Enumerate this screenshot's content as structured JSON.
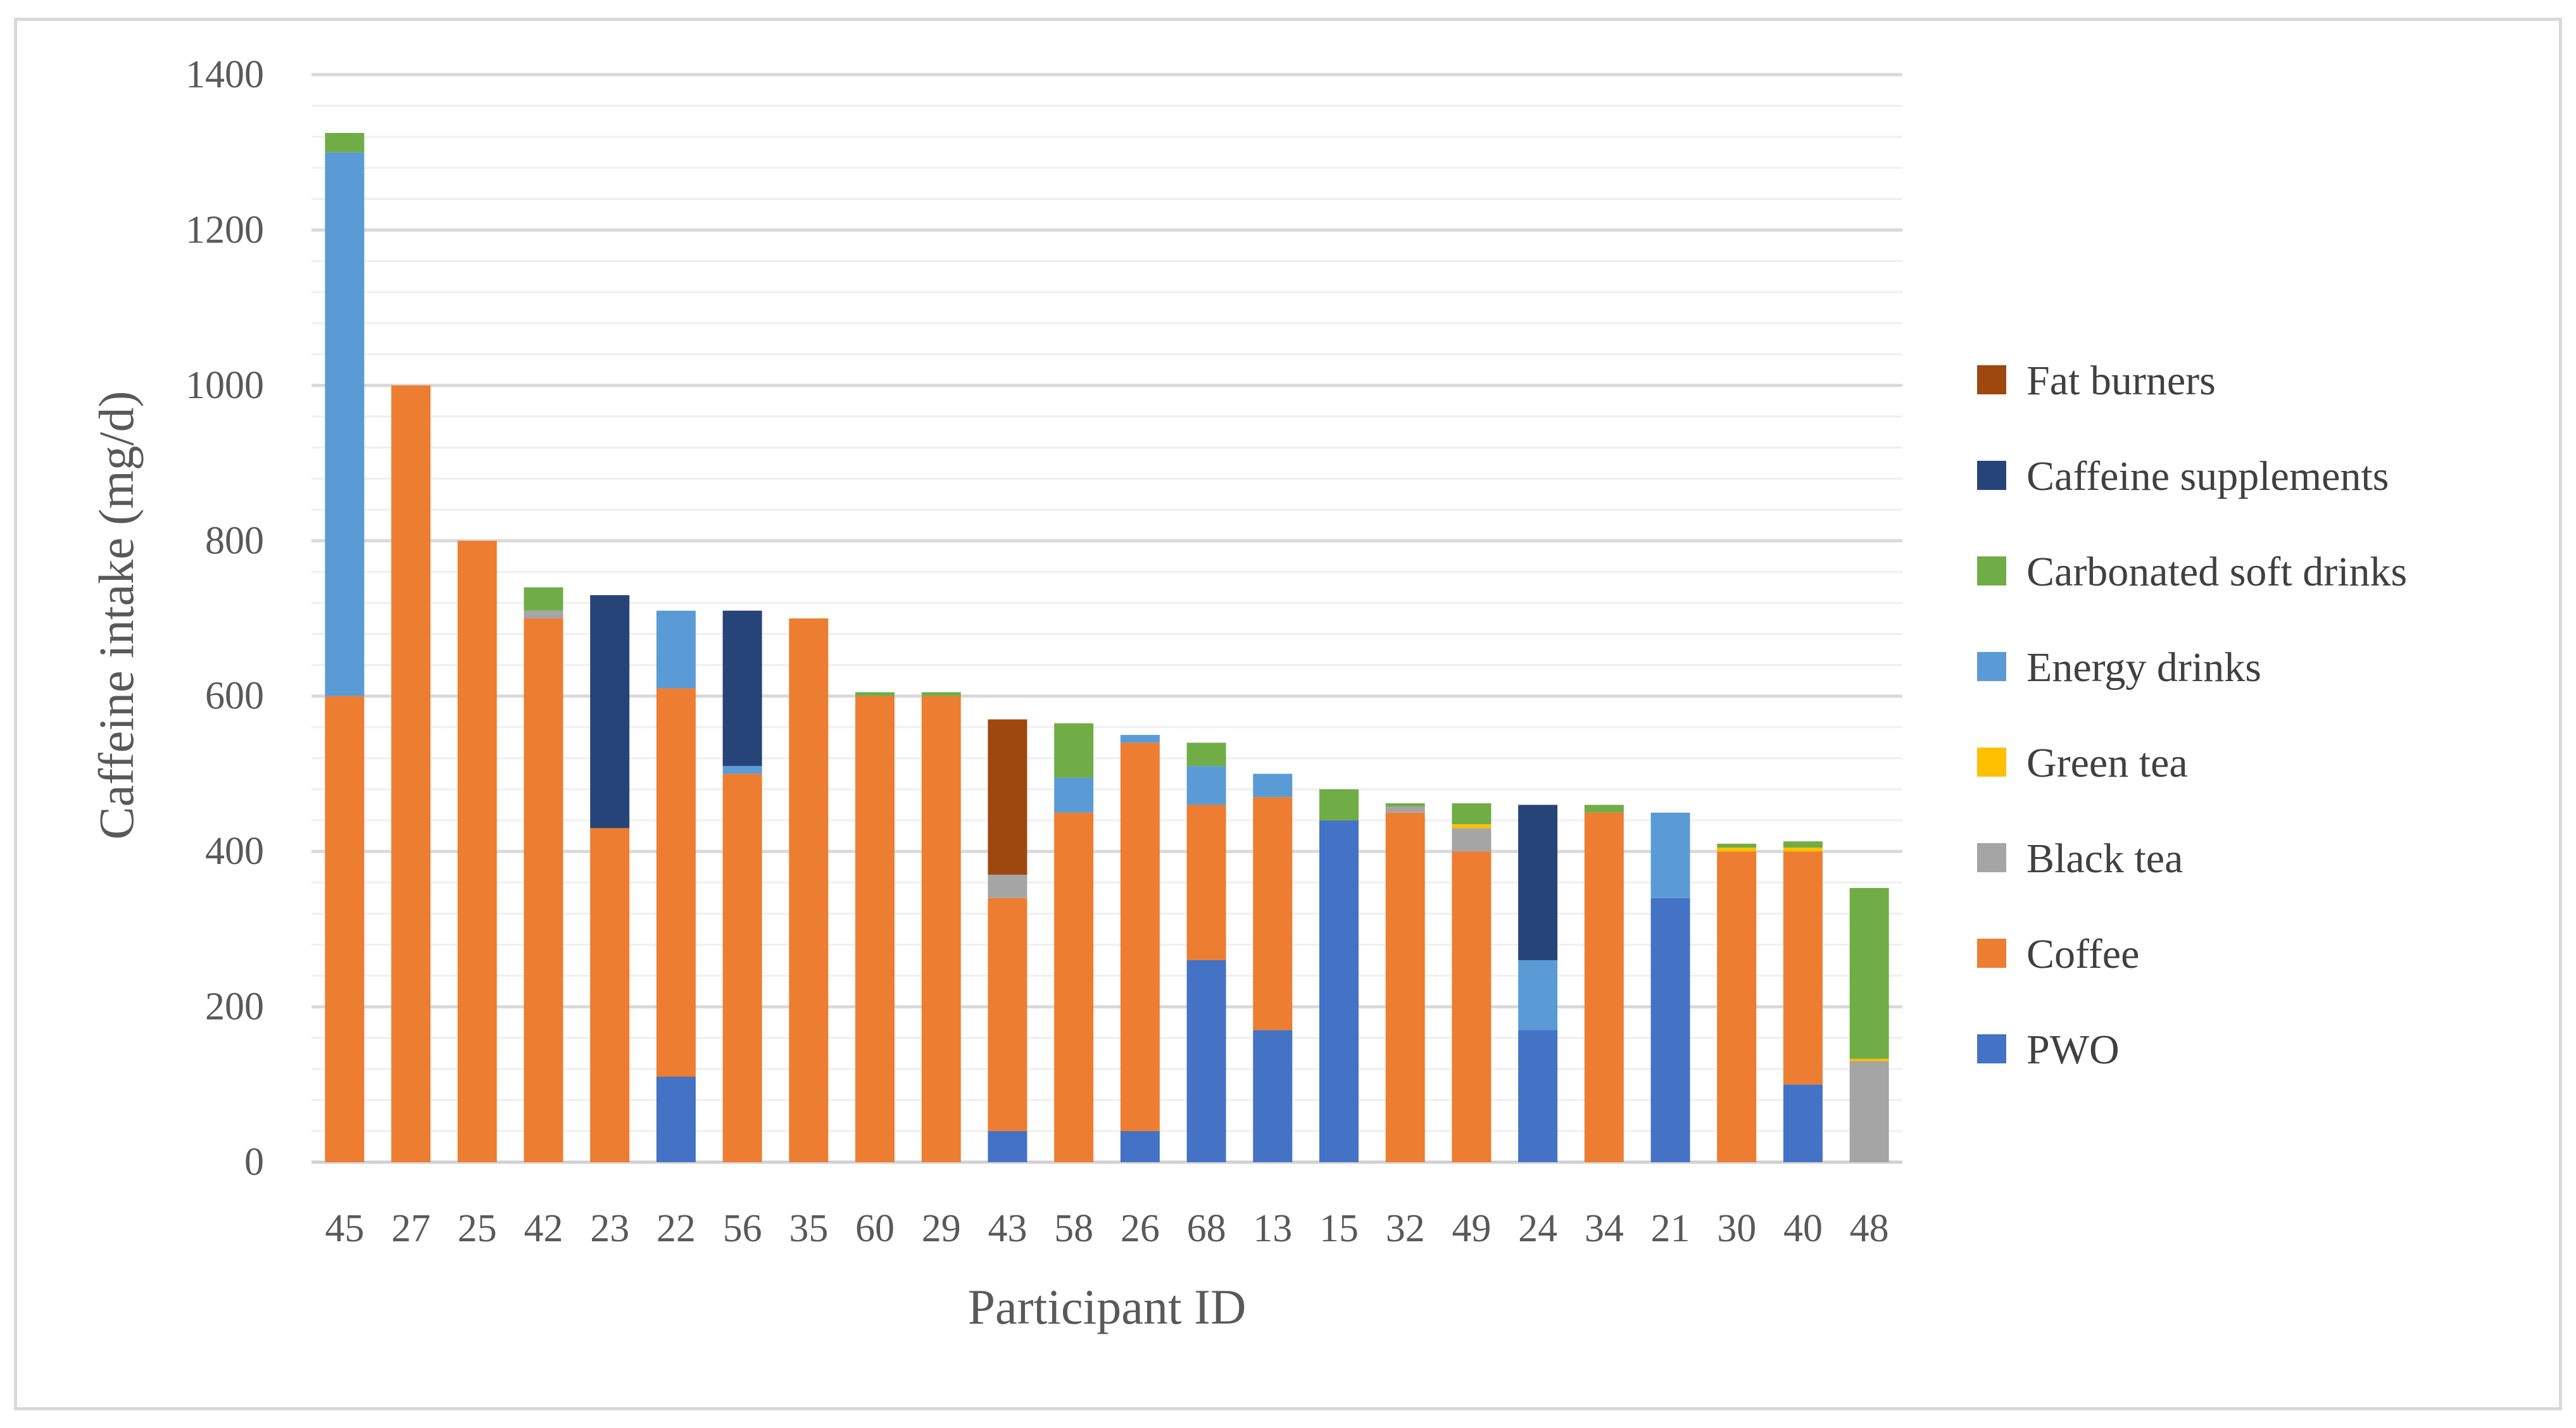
{
  "chart_data": {
    "type": "bar",
    "stacked": true,
    "title": "",
    "xlabel": "Participant ID",
    "ylabel": "Caffeine intake (mg/d)",
    "ylim": [
      0,
      1400
    ],
    "ytick_step": 200,
    "minor_grid_step": 40,
    "grid": true,
    "legend_position": "right",
    "categories": [
      "45",
      "27",
      "25",
      "42",
      "23",
      "22",
      "56",
      "35",
      "60",
      "29",
      "43",
      "58",
      "26",
      "68",
      "13",
      "15",
      "32",
      "49",
      "24",
      "34",
      "21",
      "30",
      "40",
      "48"
    ],
    "series": [
      {
        "name": "PWO",
        "color": "#4472c4",
        "values": [
          0,
          0,
          0,
          0,
          0,
          110,
          0,
          0,
          0,
          0,
          40,
          0,
          40,
          260,
          170,
          440,
          0,
          0,
          170,
          0,
          340,
          0,
          100,
          0
        ]
      },
      {
        "name": "Coffee",
        "color": "#ed7d31",
        "values": [
          600,
          1000,
          800,
          700,
          430,
          500,
          500,
          700,
          600,
          600,
          300,
          450,
          500,
          200,
          300,
          0,
          450,
          400,
          0,
          450,
          0,
          400,
          300,
          0
        ]
      },
      {
        "name": "Black tea",
        "color": "#a5a5a5",
        "values": [
          0,
          0,
          0,
          10,
          0,
          0,
          0,
          0,
          0,
          0,
          30,
          0,
          0,
          0,
          0,
          0,
          8,
          30,
          0,
          0,
          0,
          0,
          0,
          130
        ]
      },
      {
        "name": "Green tea",
        "color": "#ffc000",
        "values": [
          0,
          0,
          0,
          0,
          0,
          0,
          0,
          0,
          0,
          0,
          0,
          0,
          0,
          0,
          0,
          0,
          0,
          5,
          0,
          0,
          0,
          5,
          5,
          3
        ]
      },
      {
        "name": "Energy drinks",
        "color": "#5b9bd5",
        "values": [
          700,
          0,
          0,
          0,
          0,
          100,
          10,
          0,
          0,
          0,
          0,
          45,
          10,
          50,
          30,
          0,
          0,
          0,
          90,
          0,
          110,
          0,
          0,
          0
        ]
      },
      {
        "name": "Carbonated soft drinks",
        "color": "#70ad47",
        "values": [
          25,
          0,
          0,
          30,
          0,
          0,
          0,
          0,
          5,
          5,
          0,
          70,
          0,
          30,
          0,
          40,
          4,
          27,
          0,
          10,
          0,
          5,
          8,
          220
        ]
      },
      {
        "name": "Caffeine supplements",
        "color": "#264478",
        "values": [
          0,
          0,
          0,
          0,
          300,
          0,
          200,
          0,
          0,
          0,
          0,
          0,
          0,
          0,
          0,
          0,
          0,
          0,
          200,
          0,
          0,
          0,
          0,
          0
        ]
      },
      {
        "name": "Fat burners",
        "color": "#9e480e",
        "values": [
          0,
          0,
          0,
          0,
          0,
          0,
          0,
          0,
          0,
          0,
          200,
          0,
          0,
          0,
          0,
          0,
          0,
          0,
          0,
          0,
          0,
          0,
          0,
          0
        ]
      }
    ],
    "legend_order": [
      "Fat burners",
      "Caffeine supplements",
      "Carbonated soft drinks",
      "Energy drinks",
      "Green tea",
      "Black tea",
      "Coffee",
      "PWO"
    ]
  }
}
